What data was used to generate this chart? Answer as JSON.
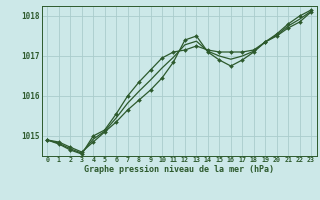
{
  "title": "Graphe pression niveau de la mer (hPa)",
  "bg_color": "#cce8e8",
  "grid_color": "#aacccc",
  "line_color": "#2d5a2d",
  "hours": [
    0,
    1,
    2,
    3,
    4,
    5,
    6,
    7,
    8,
    9,
    10,
    11,
    12,
    13,
    14,
    15,
    16,
    17,
    18,
    19,
    20,
    21,
    22,
    23
  ],
  "series1": [
    1014.9,
    1014.85,
    1014.72,
    1014.6,
    1014.85,
    1015.1,
    1015.35,
    1015.65,
    1015.9,
    1016.15,
    1016.45,
    1016.85,
    1017.4,
    1017.5,
    1017.1,
    1016.9,
    1016.75,
    1016.9,
    1017.1,
    1017.35,
    1017.55,
    1017.8,
    1018.0,
    1018.15
  ],
  "series2": [
    1014.9,
    1014.8,
    1014.65,
    1014.55,
    1015.0,
    1015.15,
    1015.55,
    1016.0,
    1016.35,
    1016.65,
    1016.95,
    1017.1,
    1017.15,
    1017.25,
    1017.15,
    1017.1,
    1017.1,
    1017.1,
    1017.15,
    1017.35,
    1017.5,
    1017.7,
    1017.85,
    1018.1
  ],
  "series3": [
    1014.9,
    1014.82,
    1014.68,
    1014.57,
    1014.92,
    1015.12,
    1015.45,
    1015.82,
    1016.12,
    1016.4,
    1016.7,
    1016.97,
    1017.28,
    1017.37,
    1017.12,
    1017.0,
    1016.92,
    1017.0,
    1017.12,
    1017.35,
    1017.52,
    1017.75,
    1017.92,
    1018.12
  ],
  "ylim": [
    1014.5,
    1018.25
  ],
  "yticks": [
    1015,
    1016,
    1017,
    1018
  ],
  "markersize": 2.0
}
